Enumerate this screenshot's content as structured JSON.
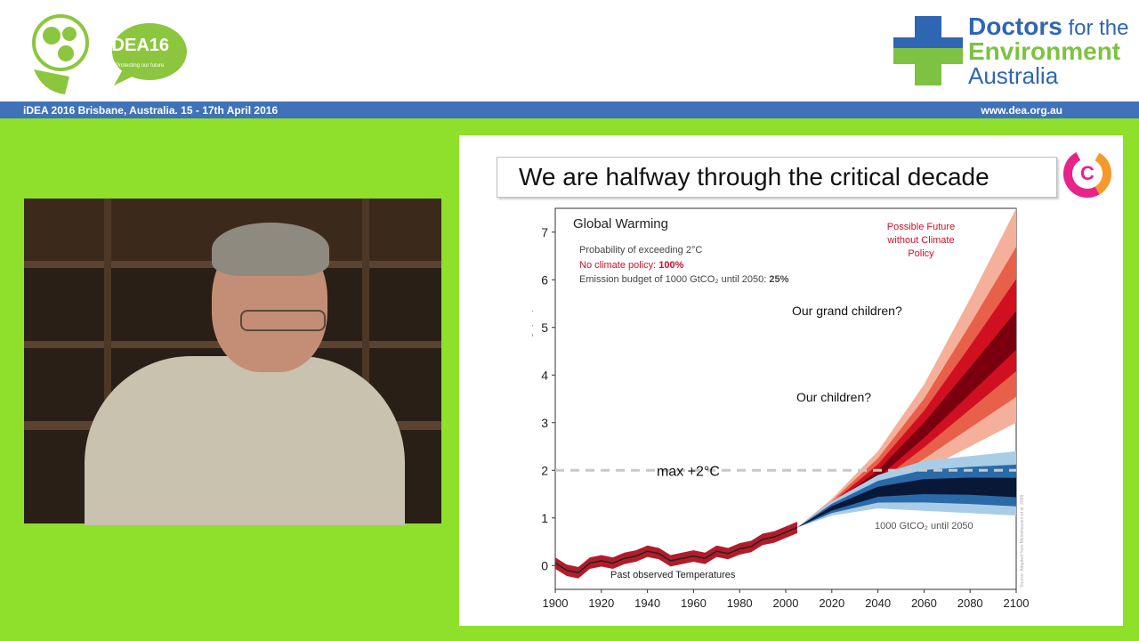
{
  "header": {
    "idea_logo_text": "iDEA16",
    "idea_tagline": "Protecting our future",
    "dea_line1_bold": "Doctors",
    "dea_line1_rest": " for the",
    "dea_line2": "Environment",
    "dea_line3": "Australia",
    "event_text": "iDEA 2016 Brisbane, Australia. 15 - 17th April 2016",
    "website": "www.dea.org.au"
  },
  "slide": {
    "title": "We are halfway through the critical decade",
    "logo_letter": "C"
  },
  "chart_data": {
    "type": "area",
    "title": "Global Warming",
    "ylabel": "Global Mean Surface Warming (°C)",
    "xlabel": "",
    "xlim": [
      1900,
      2100
    ],
    "ylim": [
      -0.5,
      7.5
    ],
    "x_ticks": [
      "1900",
      "1920",
      "1940",
      "1960",
      "1980",
      "2000",
      "2020",
      "2040",
      "2060",
      "2080",
      "2100"
    ],
    "y_ticks": [
      "0",
      "1",
      "2",
      "3",
      "4",
      "5",
      "6",
      "7"
    ],
    "info": {
      "line1": "Probability of exceeding 2°C",
      "line2_label": "No climate policy: ",
      "line2_value": "100%",
      "line3_label": "Emission budget of 1000 GtCO₂ until 2050: ",
      "line3_value": "25%"
    },
    "annotations": {
      "future": [
        "Possible Future",
        "without Climate",
        "Policy"
      ],
      "grandchildren": "Our  grand children?",
      "children": "Our children?",
      "max": "max +2°C",
      "budget": "1000 GtCO₂ until 2050",
      "past": "Past observed Temperatures",
      "source": "Source: Adapted from Meinshausen et al. 2009"
    },
    "threshold": 2,
    "past_observed": {
      "x": [
        1900,
        1905,
        1910,
        1915,
        1920,
        1925,
        1930,
        1935,
        1940,
        1945,
        1950,
        1955,
        1960,
        1965,
        1970,
        1975,
        1980,
        1985,
        1990,
        1995,
        2000,
        2005
      ],
      "y": [
        0.05,
        -0.1,
        -0.15,
        0.05,
        0.1,
        0.05,
        0.15,
        0.2,
        0.3,
        0.25,
        0.1,
        0.15,
        0.2,
        0.15,
        0.3,
        0.25,
        0.35,
        0.4,
        0.55,
        0.6,
        0.7,
        0.8
      ]
    },
    "no_policy": {
      "x": [
        2005,
        2020,
        2040,
        2060,
        2080,
        2100
      ],
      "low": [
        0.8,
        1.1,
        1.5,
        2.0,
        2.5,
        3.0
      ],
      "median": [
        0.8,
        1.25,
        1.9,
        2.8,
        3.8,
        4.8
      ],
      "high": [
        0.8,
        1.4,
        2.4,
        3.8,
        5.6,
        7.5
      ]
    },
    "budget_scenario": {
      "x": [
        2005,
        2020,
        2040,
        2060,
        2080,
        2100
      ],
      "low": [
        0.8,
        1.05,
        1.2,
        1.15,
        1.1,
        1.05
      ],
      "median": [
        0.8,
        1.2,
        1.55,
        1.65,
        1.65,
        1.6
      ],
      "high": [
        0.8,
        1.35,
        1.9,
        2.2,
        2.3,
        2.4
      ]
    },
    "colors": {
      "no_policy_dark": "#7a0010",
      "no_policy_mid": "#d01020",
      "no_policy_light": "#f4b09a",
      "budget_dark": "#0a1838",
      "budget_mid": "#2a6aa8",
      "budget_light": "#a9cde6",
      "past_line": "#222222",
      "past_band": "#b21c2a"
    }
  }
}
